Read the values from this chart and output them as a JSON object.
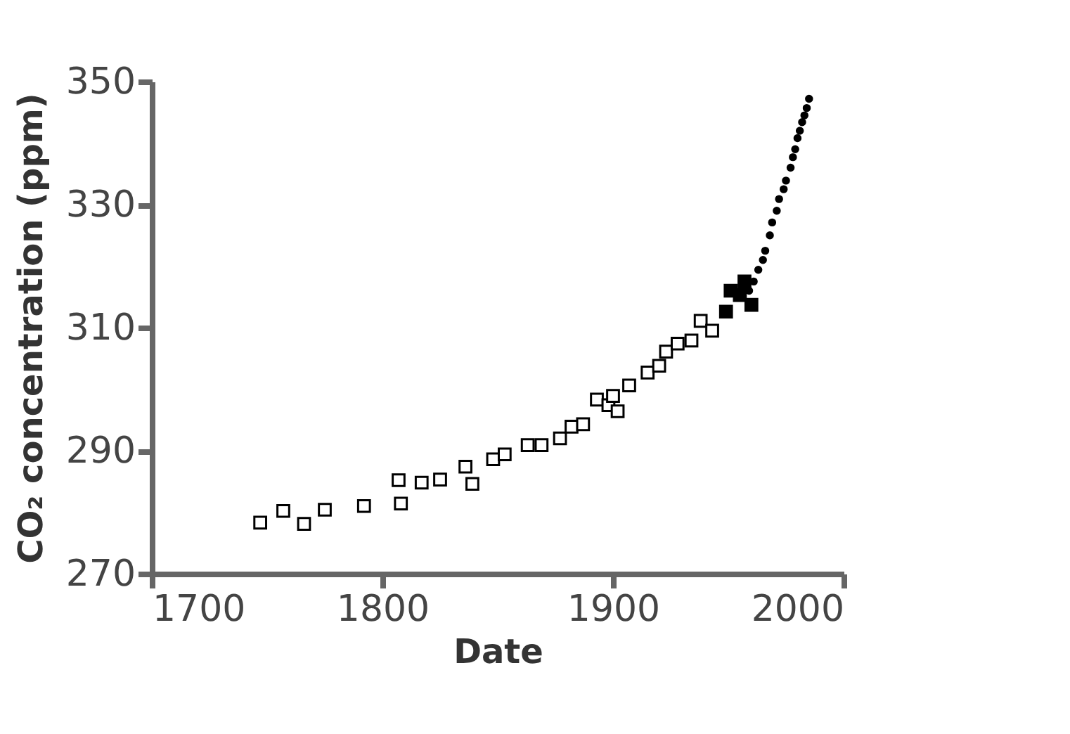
{
  "chart_data": {
    "type": "scatter",
    "xlabel": "Date",
    "ylabel": "CO₂ concentration (ppm)",
    "xlim": [
      1700,
      2000
    ],
    "xticks": [
      1700,
      1800,
      1900,
      2000
    ],
    "ylim": [
      270,
      350
    ],
    "yticks": [
      270,
      290,
      310,
      330,
      350
    ],
    "grid": false,
    "series": [
      {
        "color": "#ffffff",
        "marker": "square",
        "x": [
          1747,
          1757,
          1766,
          1775,
          1792,
          1807,
          1808,
          1817,
          1825,
          1836,
          1839,
          1848,
          1853,
          1863,
          1869,
          1877,
          1882,
          1887,
          1893,
          1898,
          1900,
          1902,
          1907,
          1915,
          1920,
          1923,
          1928,
          1934,
          1938,
          1943
        ],
        "values": [
          278.3,
          280.2,
          278.1,
          280.4,
          281,
          285.2,
          281.4,
          284.8,
          285.3,
          287.4,
          284.6,
          288.6,
          289.4,
          290.9,
          290.9,
          292,
          293.9,
          294.3,
          298.3,
          297.4,
          298.9,
          296.4,
          300.6,
          302.7,
          303.8,
          306.1,
          307.4,
          307.9,
          311.1,
          309.5
        ]
      },
      {
        "color": "#000000",
        "marker": "square",
        "x": [
          1949,
          1951,
          1955,
          1957,
          1960
        ],
        "values": [
          312.6,
          316,
          315.3,
          317.5,
          313.7
        ]
      },
      {
        "color": "#000000",
        "marker": "circle",
        "x": [
          1959,
          1961,
          1963,
          1965,
          1966,
          1968,
          1969,
          1971,
          1972,
          1974,
          1975,
          1977,
          1978,
          1979,
          1980,
          1981,
          1982,
          1983,
          1984,
          1985
        ],
        "values": [
          316,
          317.5,
          319.4,
          321,
          322.5,
          325,
          327.1,
          329,
          330.9,
          332.5,
          333.9,
          336,
          337.7,
          339,
          340.8,
          342,
          343.4,
          344.5,
          345.7,
          347.2
        ]
      }
    ]
  }
}
